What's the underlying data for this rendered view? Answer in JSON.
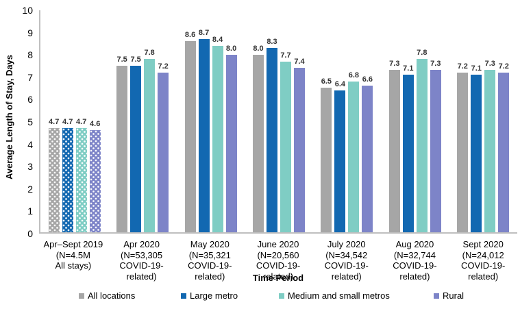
{
  "chart_data": {
    "type": "bar",
    "title": "",
    "ylabel": "Average Length of Stay, Days",
    "xlabel": "Time Period",
    "ylim": [
      0,
      10
    ],
    "yticks": [
      0,
      1,
      2,
      3,
      4,
      5,
      6,
      7,
      8,
      9,
      10
    ],
    "grid": false,
    "legend_position": "bottom",
    "value_labels": true,
    "categories": [
      {
        "lines": [
          "Apr–Sept 2019",
          "(N=4.5M",
          "All stays)"
        ],
        "pattern": "dots"
      },
      {
        "lines": [
          "Apr 2020",
          "(N=53,305",
          "COVID-19-related)"
        ],
        "pattern": "solid"
      },
      {
        "lines": [
          "May 2020",
          "(N=35,321",
          "COVID-19-related)"
        ],
        "pattern": "solid"
      },
      {
        "lines": [
          "June 2020",
          "(N=20,560",
          "COVID-19-related)"
        ],
        "pattern": "solid"
      },
      {
        "lines": [
          "July 2020",
          "(N=34,542",
          "COVID-19-related)"
        ],
        "pattern": "solid"
      },
      {
        "lines": [
          "Aug 2020",
          "(N=32,744",
          "COVID-19-related)"
        ],
        "pattern": "solid"
      },
      {
        "lines": [
          "Sept 2020",
          "(N=24,012",
          "COVID-19-related)"
        ],
        "pattern": "solid"
      }
    ],
    "series": [
      {
        "name": "All locations",
        "color": "#A6A6A6",
        "values": [
          4.7,
          7.5,
          8.6,
          8.0,
          6.5,
          7.3,
          7.2
        ]
      },
      {
        "name": "Large metro",
        "color": "#1268B1",
        "values": [
          4.7,
          7.5,
          8.7,
          8.3,
          6.4,
          7.1,
          7.1
        ]
      },
      {
        "name": "Medium and small metros",
        "color": "#7FCDC4",
        "values": [
          4.7,
          7.8,
          8.4,
          7.7,
          6.8,
          7.8,
          7.3
        ]
      },
      {
        "name": "Rural",
        "color": "#7D84C8",
        "values": [
          4.6,
          7.2,
          8.0,
          7.4,
          6.6,
          7.3,
          7.2
        ]
      }
    ],
    "colors": {
      "axis": "#BFBFBF",
      "text": "#000000",
      "value_label": "#333333"
    }
  }
}
